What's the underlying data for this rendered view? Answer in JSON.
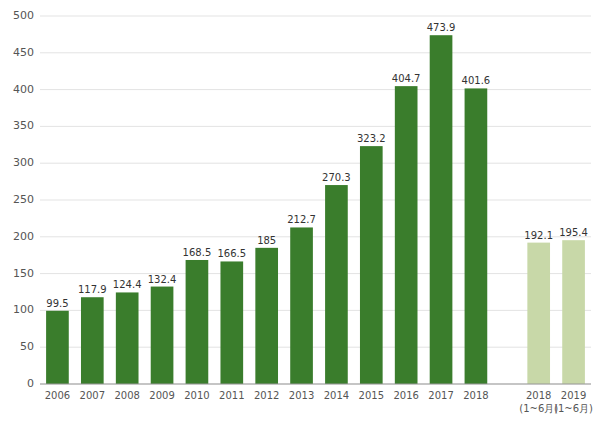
{
  "chart_data": {
    "type": "bar",
    "categories": [
      "2006",
      "2007",
      "2008",
      "2009",
      "2010",
      "2011",
      "2012",
      "2013",
      "2014",
      "2015",
      "2016",
      "2017",
      "2018",
      "2018\n(1~6月)",
      "2019\n(1~6月)"
    ],
    "values": [
      99.5,
      117.9,
      124.4,
      132.4,
      168.5,
      166.5,
      185,
      212.7,
      270.3,
      323.2,
      404.7,
      473.9,
      401.6,
      192.1,
      195.4
    ],
    "colors": [
      "#3a7d2c",
      "#3a7d2c",
      "#3a7d2c",
      "#3a7d2c",
      "#3a7d2c",
      "#3a7d2c",
      "#3a7d2c",
      "#3a7d2c",
      "#3a7d2c",
      "#3a7d2c",
      "#3a7d2c",
      "#3a7d2c",
      "#3a7d2c",
      "#c8d8a8",
      "#c8d8a8"
    ],
    "ylim": [
      0,
      500
    ],
    "yticks": [
      0,
      50,
      100,
      150,
      200,
      250,
      300,
      350,
      400,
      450,
      500
    ],
    "grid": true,
    "data_labels": true
  }
}
